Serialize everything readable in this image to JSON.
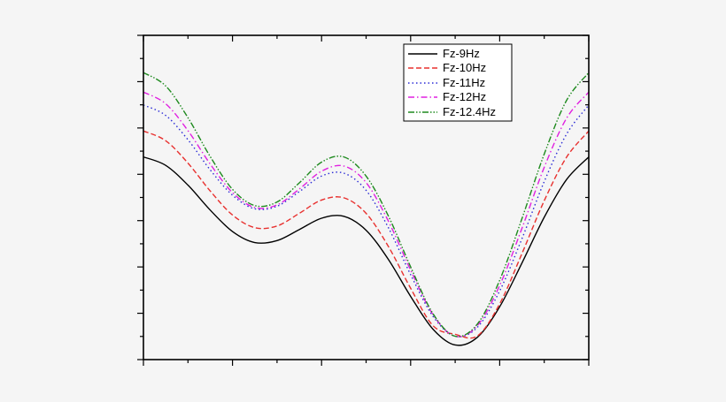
{
  "chart_data": {
    "type": "line",
    "title": "",
    "xlabel": "",
    "ylabel": "",
    "xlim": [
      0,
      1
    ],
    "ylim": [
      0,
      1
    ],
    "grid": false,
    "legend_position": "top-right",
    "x": [
      0,
      0.05,
      0.1,
      0.15,
      0.2,
      0.25,
      0.3,
      0.35,
      0.4,
      0.45,
      0.5,
      0.55,
      0.6,
      0.65,
      0.7,
      0.75,
      0.8,
      0.85,
      0.9,
      0.95,
      1.0
    ],
    "series": [
      {
        "name": "Fz-9Hz",
        "color": "#000000",
        "dash": "solid",
        "values": [
          0.625,
          0.599,
          0.538,
          0.461,
          0.395,
          0.361,
          0.367,
          0.401,
          0.436,
          0.442,
          0.399,
          0.309,
          0.195,
          0.094,
          0.045,
          0.069,
          0.163,
          0.298,
          0.439,
          0.555,
          0.625
        ]
      },
      {
        "name": "Fz-10Hz",
        "color": "#e8312f",
        "dash": "dashed",
        "values": [
          0.705,
          0.675,
          0.606,
          0.52,
          0.446,
          0.407,
          0.412,
          0.451,
          0.492,
          0.499,
          0.451,
          0.349,
          0.22,
          0.105,
          0.078,
          0.073,
          0.172,
          0.327,
          0.49,
          0.624,
          0.705
        ]
      },
      {
        "name": "Fz-11Hz",
        "color": "#2b2bd6",
        "dash": "dotted",
        "values": [
          0.785,
          0.753,
          0.678,
          0.585,
          0.507,
          0.465,
          0.473,
          0.518,
          0.566,
          0.575,
          0.522,
          0.407,
          0.262,
          0.134,
          0.072,
          0.1,
          0.212,
          0.373,
          0.549,
          0.695,
          0.785
        ]
      },
      {
        "name": "Fz-12Hz",
        "color": "#e020e0",
        "dash": "dashdot",
        "values": [
          0.825,
          0.789,
          0.706,
          0.603,
          0.515,
          0.469,
          0.477,
          0.526,
          0.581,
          0.597,
          0.546,
          0.427,
          0.276,
          0.139,
          0.072,
          0.105,
          0.229,
          0.405,
          0.593,
          0.744,
          0.825
        ]
      },
      {
        "name": "Fz-12.4Hz",
        "color": "#1e8a1e",
        "dash": "dashdotdot",
        "values": [
          0.885,
          0.844,
          0.746,
          0.626,
          0.525,
          0.475,
          0.486,
          0.545,
          0.609,
          0.625,
          0.566,
          0.443,
          0.286,
          0.142,
          0.072,
          0.11,
          0.245,
          0.435,
          0.634,
          0.799,
          0.885
        ]
      }
    ]
  }
}
